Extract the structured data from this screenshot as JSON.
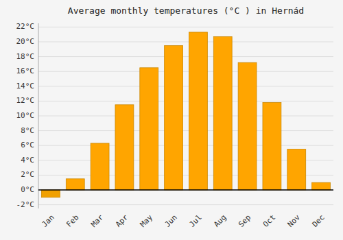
{
  "chart_data": {
    "type": "bar",
    "title": "Average monthly temperatures (°C ) in Hernád",
    "categories": [
      "Jan",
      "Feb",
      "Mar",
      "Apr",
      "May",
      "Jun",
      "Jul",
      "Aug",
      "Sep",
      "Oct",
      "Nov",
      "Dec"
    ],
    "values": [
      -1.0,
      1.5,
      6.3,
      11.5,
      16.5,
      19.5,
      21.3,
      20.7,
      17.2,
      11.8,
      5.5,
      1.0
    ],
    "colors": [
      "#F0A000",
      "#FFA500",
      "#FFA500",
      "#FFA500",
      "#FFA500",
      "#FFA500",
      "#FFA500",
      "#FFA500",
      "#FFA500",
      "#FFA500",
      "#FFA500",
      "#FFA500"
    ],
    "ylim": [
      -2.5,
      22.5
    ],
    "yticks": [
      {
        "value": -2,
        "label": "-2°C"
      },
      {
        "value": 0,
        "label": "0°C"
      },
      {
        "value": 2,
        "label": "2°C"
      },
      {
        "value": 4,
        "label": "4°C"
      },
      {
        "value": 6,
        "label": "6°C"
      },
      {
        "value": 8,
        "label": "8°C"
      },
      {
        "value": 10,
        "label": "10°C"
      },
      {
        "value": 12,
        "label": "12°C"
      },
      {
        "value": 14,
        "label": "14°C"
      },
      {
        "value": 16,
        "label": "16°C"
      },
      {
        "value": 18,
        "label": "18°C"
      },
      {
        "value": 20,
        "label": "20°C"
      },
      {
        "value": 22,
        "label": "22°C"
      }
    ],
    "grid": true
  }
}
